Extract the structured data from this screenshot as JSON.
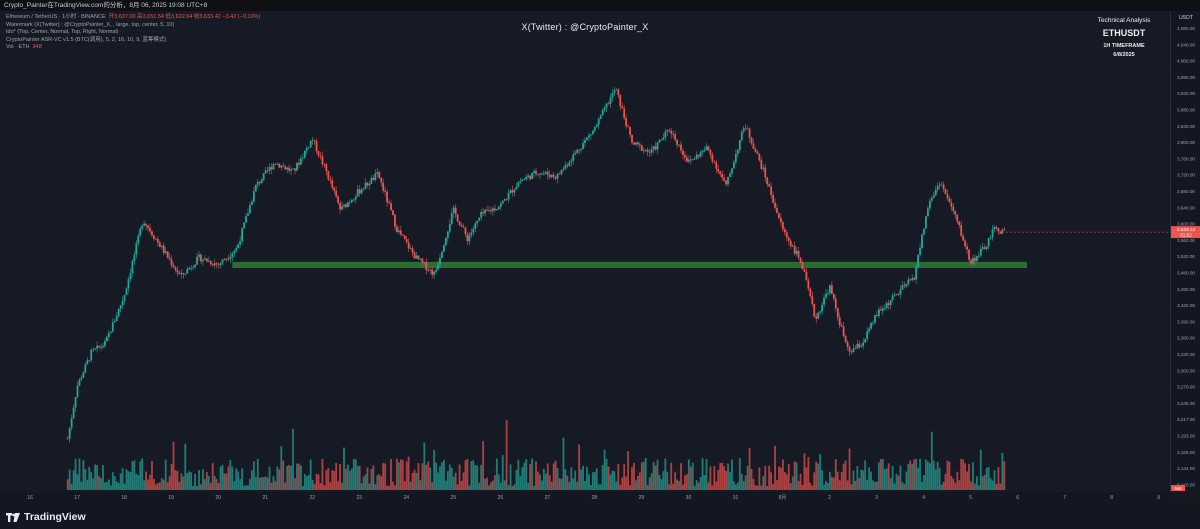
{
  "header": {
    "title": "Crypto_Painter在TradingView.com的分析，8月 06, 2025 19:08 UTC+8"
  },
  "legend": {
    "line1_prefix": "Ethereum / TetherUS · 1小时 · BINANCE",
    "line1_values": "开3,637.00  高3,651.54  低3,622.64  收3,633.42  −3.42 (−0.10%)",
    "line2": "Watermark (X(Twitter) : @CryptoPainter_X, , large, top, center, 5, 10)",
    "line3": "tdo* (Top, Center, Normal, Top, Right, Normal)",
    "line4": "CryptoPainter ASR-VC v1.5 (BTC(调用), 5, 2, 16, 10, 9, 蓝筹模式)",
    "line5_prefix": "Vol · ETH",
    "line5_value": "948"
  },
  "watermark": "X(Twitter) : @CryptoPainter_X",
  "analysis_box": {
    "line1": "Technical Analysis",
    "line2": "ETHUSDT",
    "line3": "1H TIMEFRAME",
    "line4": "6/8/2025"
  },
  "axis": {
    "currency": "USDT",
    "price_label": "3,633.42",
    "price_countdown": "51:52",
    "volume_label": "948"
  },
  "footer": {
    "brand": "TradingView"
  },
  "colors": {
    "up": "#26a69a",
    "down": "#ef5350",
    "zone": "#2e7d32",
    "background": "#161a24"
  },
  "chart_data": {
    "type": "candlestick",
    "symbol": "ETHUSDT",
    "timeframe": "1H",
    "x_ticks": [
      "16",
      "17",
      "18",
      "19",
      "20",
      "21",
      "22",
      "23",
      "24",
      "25",
      "26",
      "27",
      "28",
      "29",
      "30",
      "31",
      "8月",
      "2",
      "3",
      "4",
      "5",
      "6",
      "7",
      "8",
      "9"
    ],
    "y_ticks": [
      "4,080.00",
      "4,040.00",
      "4,000.00",
      "3,990.00",
      "3,940.00",
      "3,880.00",
      "3,840.00",
      "3,800.00",
      "3,760.00",
      "3,720.00",
      "3,680.00",
      "3,640.00",
      "3,600.00",
      "3,560.00",
      "3,520.00",
      "3,480.00",
      "3,450.00",
      "3,420.00",
      "3,390.00",
      "3,360.00",
      "3,330.00",
      "3,300.00",
      "3,270.00",
      "3,245.00",
      "3,217.00",
      "3,193.00",
      "3,168.00",
      "3,144.00",
      "3,120.00"
    ],
    "price_path_anchors": [
      {
        "x": 16.8,
        "y": 3200
      },
      {
        "x": 17.0,
        "y": 3310
      },
      {
        "x": 17.3,
        "y": 3380
      },
      {
        "x": 17.6,
        "y": 3400
      },
      {
        "x": 18.0,
        "y": 3500
      },
      {
        "x": 18.4,
        "y": 3660
      },
      {
        "x": 18.8,
        "y": 3600
      },
      {
        "x": 19.2,
        "y": 3540
      },
      {
        "x": 19.6,
        "y": 3580
      },
      {
        "x": 20.0,
        "y": 3565
      },
      {
        "x": 20.4,
        "y": 3600
      },
      {
        "x": 20.8,
        "y": 3730
      },
      {
        "x": 21.2,
        "y": 3780
      },
      {
        "x": 21.6,
        "y": 3760
      },
      {
        "x": 22.0,
        "y": 3830
      },
      {
        "x": 22.3,
        "y": 3760
      },
      {
        "x": 22.6,
        "y": 3680
      },
      {
        "x": 23.0,
        "y": 3720
      },
      {
        "x": 23.4,
        "y": 3755
      },
      {
        "x": 23.8,
        "y": 3640
      },
      {
        "x": 24.2,
        "y": 3580
      },
      {
        "x": 24.6,
        "y": 3545
      },
      {
        "x": 25.0,
        "y": 3680
      },
      {
        "x": 25.3,
        "y": 3620
      },
      {
        "x": 25.6,
        "y": 3670
      },
      {
        "x": 26.0,
        "y": 3690
      },
      {
        "x": 26.4,
        "y": 3740
      },
      {
        "x": 26.8,
        "y": 3760
      },
      {
        "x": 27.2,
        "y": 3750
      },
      {
        "x": 27.6,
        "y": 3800
      },
      {
        "x": 28.0,
        "y": 3850
      },
      {
        "x": 28.45,
        "y": 3935
      },
      {
        "x": 28.8,
        "y": 3820
      },
      {
        "x": 29.2,
        "y": 3800
      },
      {
        "x": 29.6,
        "y": 3850
      },
      {
        "x": 30.0,
        "y": 3780
      },
      {
        "x": 30.4,
        "y": 3810
      },
      {
        "x": 30.8,
        "y": 3730
      },
      {
        "x": 31.2,
        "y": 3860
      },
      {
        "x": 31.6,
        "y": 3760
      },
      {
        "x": 32.0,
        "y": 3640
      },
      {
        "x": 32.4,
        "y": 3570
      },
      {
        "x": 32.7,
        "y": 3450
      },
      {
        "x": 33.0,
        "y": 3520
      },
      {
        "x": 33.4,
        "y": 3380
      },
      {
        "x": 33.7,
        "y": 3400
      },
      {
        "x": 34.0,
        "y": 3460
      },
      {
        "x": 34.4,
        "y": 3500
      },
      {
        "x": 34.8,
        "y": 3540
      },
      {
        "x": 35.1,
        "y": 3690
      },
      {
        "x": 35.35,
        "y": 3740
      },
      {
        "x": 35.7,
        "y": 3660
      },
      {
        "x": 36.0,
        "y": 3570
      },
      {
        "x": 36.3,
        "y": 3600
      },
      {
        "x": 36.5,
        "y": 3640
      },
      {
        "x": 36.75,
        "y": 3633.42
      }
    ],
    "support_zone": {
      "from": 3558,
      "to": 3571,
      "start_day": 20.3,
      "end_day": 37.2
    },
    "last_close": 3633.42,
    "ylim": [
      3100,
      4100
    ]
  }
}
